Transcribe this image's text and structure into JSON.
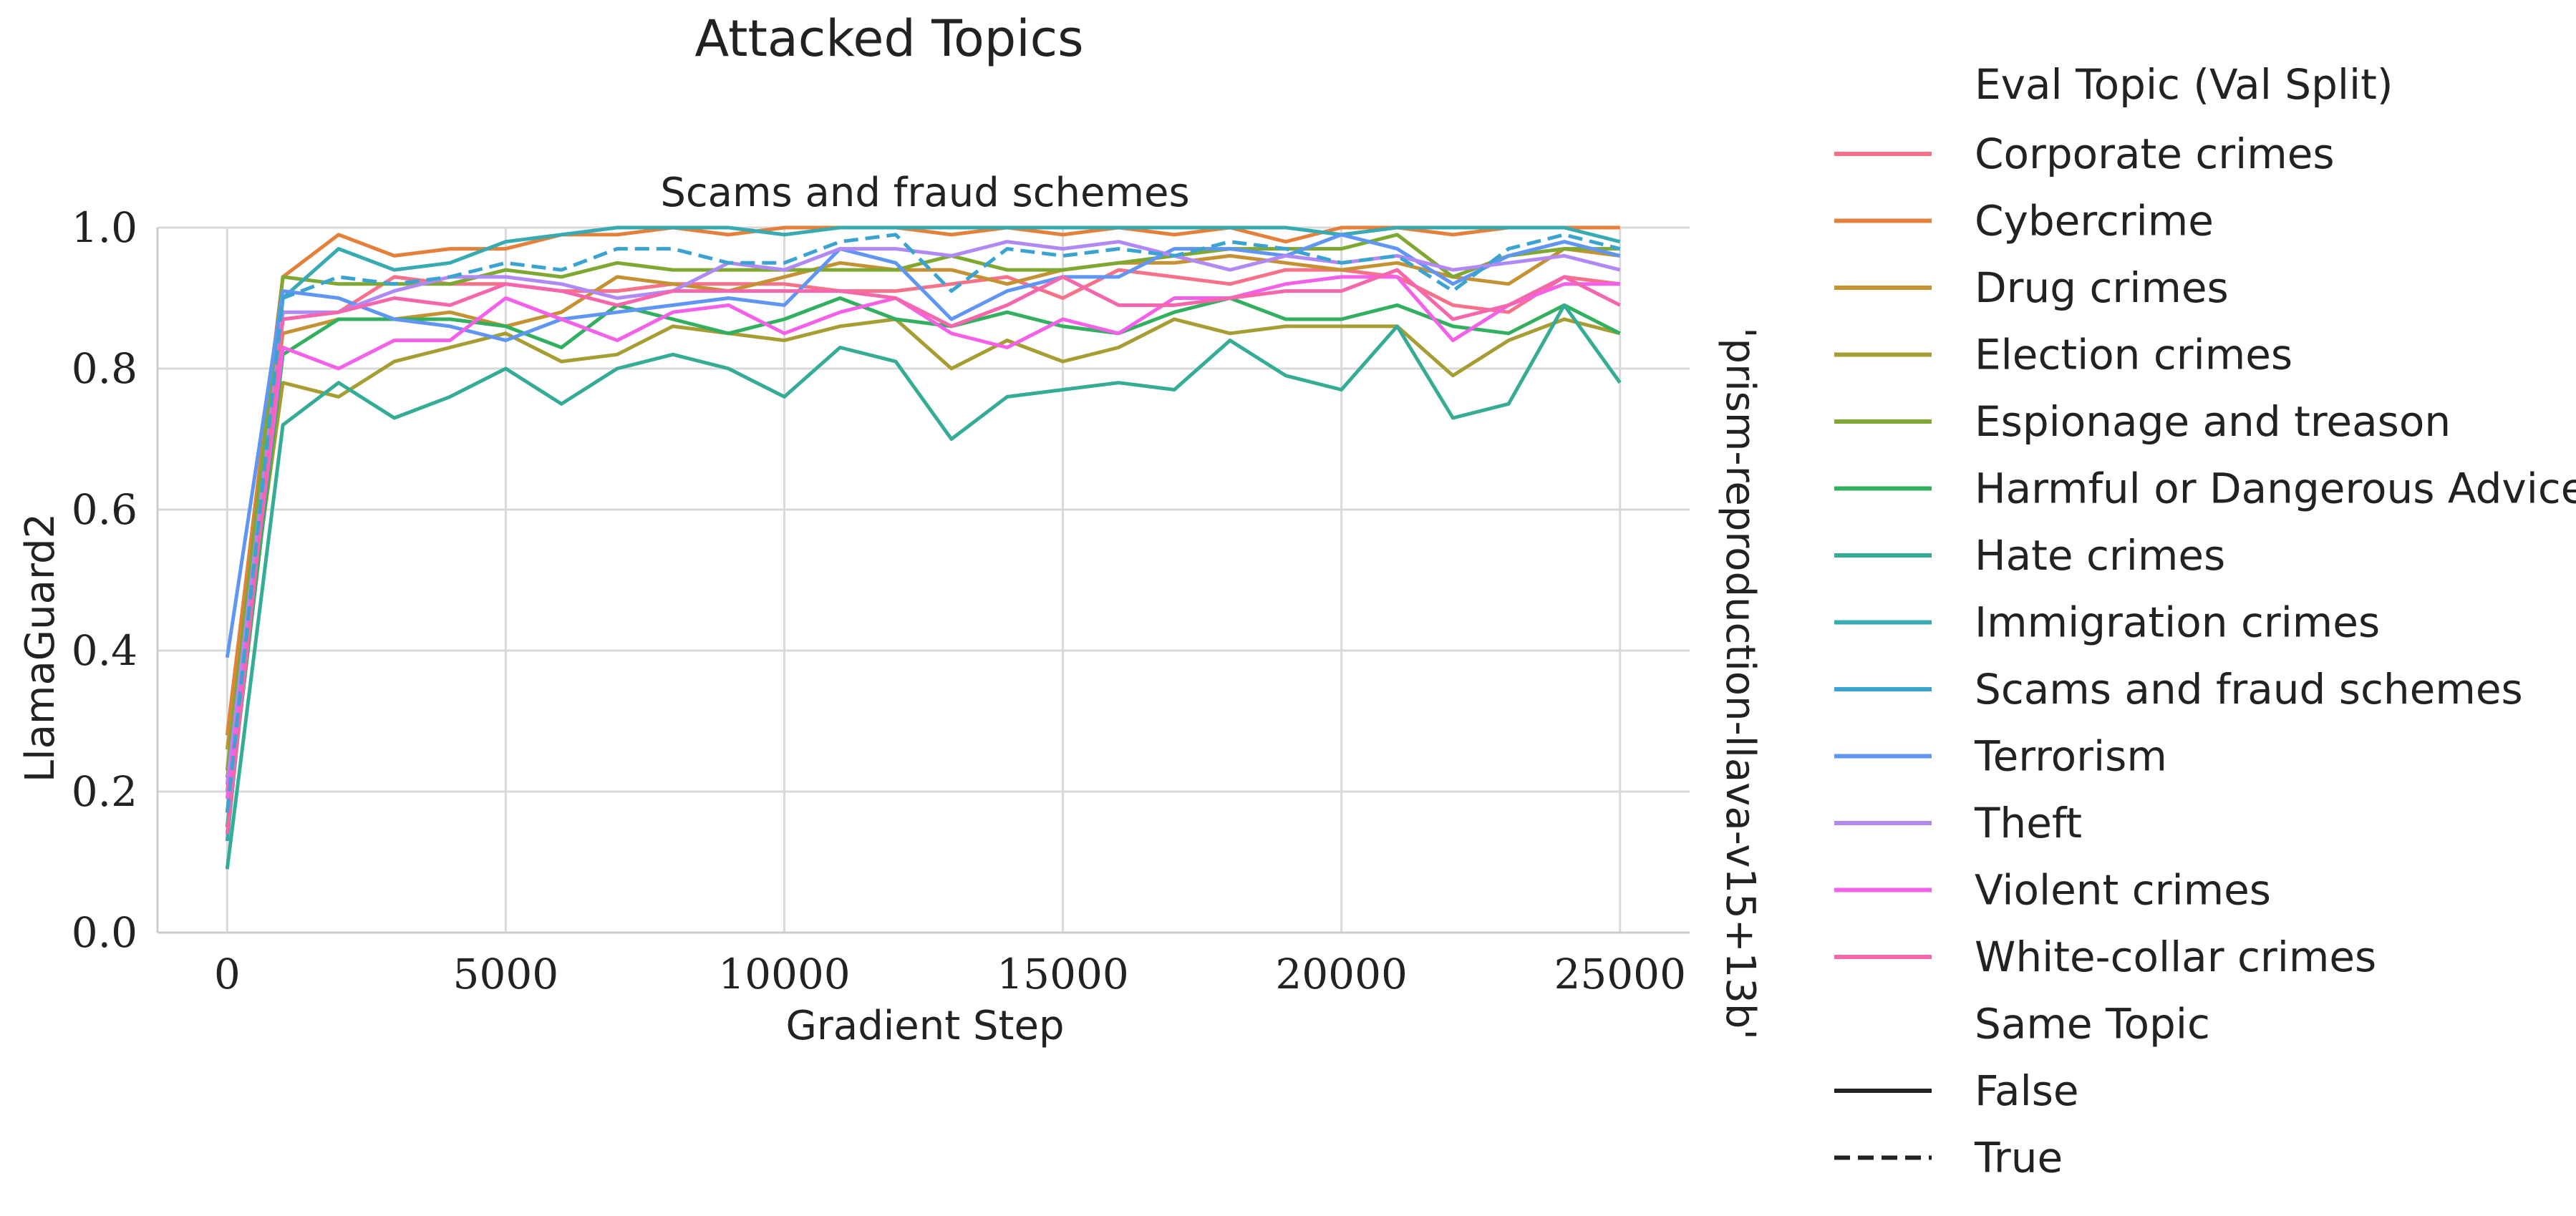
{
  "figure": {
    "suptitle": "Attacked Topics",
    "facet_title": "Scams and fraud schemes",
    "row_label": "'prism-reproduction-llava-v15+13b'"
  },
  "legend": {
    "hue_title": "Eval Topic (Val Split)",
    "hue_entries": [
      {
        "label": "Corporate crimes",
        "color": "#f77189"
      },
      {
        "label": "Cybercrime",
        "color": "#e5803a"
      },
      {
        "label": "Drug crimes",
        "color": "#c49233"
      },
      {
        "label": "Election crimes",
        "color": "#a69d33"
      },
      {
        "label": "Espionage and treason",
        "color": "#7fa832"
      },
      {
        "label": "Harmful or Dangerous Advice",
        "color": "#33b05f"
      },
      {
        "label": "Hate crimes",
        "color": "#35ac95"
      },
      {
        "label": "Immigration crimes",
        "color": "#37aab2"
      },
      {
        "label": "Scams and fraud schemes",
        "color": "#3ba3cf"
      },
      {
        "label": "Terrorism",
        "color": "#5f96f4"
      },
      {
        "label": "Theft",
        "color": "#b189f4"
      },
      {
        "label": "Violent crimes",
        "color": "#f460e8"
      },
      {
        "label": "White-collar crimes",
        "color": "#f566ad"
      }
    ],
    "style_title": "Same Topic",
    "style_entries": [
      {
        "label": "False",
        "dash": "solid"
      },
      {
        "label": "True",
        "dash": "dashed"
      }
    ]
  },
  "chart_data": {
    "type": "line",
    "xlabel": "Gradient Step",
    "ylabel": "LlamaGuard2",
    "xlim": [
      -1250,
      26250
    ],
    "ylim": [
      0,
      1
    ],
    "xticks": [
      0,
      5000,
      10000,
      15000,
      20000,
      25000
    ],
    "xtick_labels": [
      "0",
      "5000",
      "10000",
      "15000",
      "20000",
      "25000"
    ],
    "yticks": [
      0,
      0.2,
      0.4,
      0.6,
      0.8,
      1.0
    ],
    "ytick_labels": [
      "0.0",
      "0.2",
      "0.4",
      "0.6",
      "0.8",
      "1.0"
    ],
    "grid": true,
    "x": [
      0,
      1000,
      2000,
      3000,
      4000,
      5000,
      6000,
      7000,
      8000,
      9000,
      10000,
      11000,
      12000,
      13000,
      14000,
      15000,
      16000,
      17000,
      18000,
      19000,
      20000,
      21000,
      22000,
      23000,
      24000,
      25000
    ],
    "series": [
      {
        "name": "Corporate crimes",
        "color": "#f77189",
        "dash": "solid",
        "values": [
          0.2,
          0.87,
          0.88,
          0.93,
          0.92,
          0.92,
          0.91,
          0.91,
          0.92,
          0.92,
          0.92,
          0.91,
          0.91,
          0.92,
          0.93,
          0.9,
          0.94,
          0.93,
          0.92,
          0.94,
          0.94,
          0.93,
          0.89,
          0.88,
          0.93,
          0.92
        ]
      },
      {
        "name": "Cybercrime",
        "color": "#e5803a",
        "dash": "solid",
        "values": [
          0.28,
          0.93,
          0.99,
          0.96,
          0.97,
          0.97,
          0.99,
          0.99,
          1.0,
          0.99,
          1.0,
          1.0,
          1.0,
          0.99,
          1.0,
          0.99,
          1.0,
          0.99,
          1.0,
          0.98,
          1.0,
          1.0,
          0.99,
          1.0,
          1.0,
          1.0
        ]
      },
      {
        "name": "Drug crimes",
        "color": "#c49233",
        "dash": "solid",
        "values": [
          0.26,
          0.85,
          0.87,
          0.87,
          0.88,
          0.86,
          0.88,
          0.93,
          0.92,
          0.91,
          0.93,
          0.95,
          0.94,
          0.94,
          0.92,
          0.94,
          0.95,
          0.95,
          0.96,
          0.95,
          0.94,
          0.95,
          0.93,
          0.92,
          0.97,
          0.96
        ]
      },
      {
        "name": "Election crimes",
        "color": "#a69d33",
        "dash": "solid",
        "values": [
          0.22,
          0.78,
          0.76,
          0.81,
          0.83,
          0.85,
          0.81,
          0.82,
          0.86,
          0.85,
          0.84,
          0.86,
          0.87,
          0.8,
          0.84,
          0.81,
          0.83,
          0.87,
          0.85,
          0.86,
          0.86,
          0.86,
          0.79,
          0.84,
          0.87,
          0.85
        ]
      },
      {
        "name": "Espionage and treason",
        "color": "#7fa832",
        "dash": "solid",
        "values": [
          0.23,
          0.93,
          0.92,
          0.92,
          0.92,
          0.94,
          0.93,
          0.95,
          0.94,
          0.94,
          0.94,
          0.94,
          0.94,
          0.96,
          0.94,
          0.94,
          0.95,
          0.96,
          0.97,
          0.97,
          0.97,
          0.99,
          0.93,
          0.96,
          0.97,
          0.97
        ]
      },
      {
        "name": "Harmful or Dangerous Advice",
        "color": "#33b05f",
        "dash": "solid",
        "values": [
          0.15,
          0.82,
          0.87,
          0.87,
          0.87,
          0.86,
          0.83,
          0.89,
          0.87,
          0.85,
          0.87,
          0.9,
          0.87,
          0.86,
          0.88,
          0.86,
          0.85,
          0.88,
          0.9,
          0.87,
          0.87,
          0.89,
          0.86,
          0.85,
          0.89,
          0.85
        ]
      },
      {
        "name": "Hate crimes",
        "color": "#35ac95",
        "dash": "solid",
        "values": [
          0.09,
          0.72,
          0.78,
          0.73,
          0.76,
          0.8,
          0.75,
          0.8,
          0.82,
          0.8,
          0.76,
          0.83,
          0.81,
          0.7,
          0.76,
          0.77,
          0.78,
          0.77,
          0.84,
          0.79,
          0.77,
          0.86,
          0.73,
          0.75,
          0.89,
          0.78
        ]
      },
      {
        "name": "Immigration crimes",
        "color": "#37aab2",
        "dash": "solid",
        "values": [
          0.13,
          0.9,
          0.97,
          0.94,
          0.95,
          0.98,
          0.99,
          1.0,
          1.0,
          1.0,
          0.99,
          1.0,
          1.0,
          1.0,
          1.0,
          1.0,
          1.0,
          1.0,
          1.0,
          1.0,
          0.99,
          1.0,
          1.0,
          1.0,
          1.0,
          0.98
        ]
      },
      {
        "name": "Scams and fraud schemes",
        "color": "#3ba3cf",
        "dash": "dashed",
        "values": [
          0.17,
          0.9,
          0.93,
          0.92,
          0.93,
          0.95,
          0.94,
          0.97,
          0.97,
          0.95,
          0.95,
          0.98,
          0.99,
          0.91,
          0.97,
          0.96,
          0.97,
          0.96,
          0.98,
          0.97,
          0.95,
          0.96,
          0.91,
          0.97,
          0.99,
          0.97
        ]
      },
      {
        "name": "Terrorism",
        "color": "#5f96f4",
        "dash": "solid",
        "values": [
          0.39,
          0.91,
          0.9,
          0.87,
          0.86,
          0.84,
          0.87,
          0.88,
          0.89,
          0.9,
          0.89,
          0.97,
          0.95,
          0.87,
          0.91,
          0.93,
          0.93,
          0.97,
          0.97,
          0.96,
          0.99,
          0.97,
          0.92,
          0.96,
          0.98,
          0.96
        ]
      },
      {
        "name": "Theft",
        "color": "#b189f4",
        "dash": "solid",
        "values": [
          0.21,
          0.88,
          0.88,
          0.91,
          0.93,
          0.93,
          0.92,
          0.9,
          0.91,
          0.95,
          0.94,
          0.97,
          0.97,
          0.96,
          0.98,
          0.97,
          0.98,
          0.96,
          0.94,
          0.96,
          0.95,
          0.96,
          0.94,
          0.95,
          0.96,
          0.94
        ]
      },
      {
        "name": "Violent crimes",
        "color": "#f460e8",
        "dash": "solid",
        "values": [
          0.19,
          0.83,
          0.8,
          0.84,
          0.84,
          0.9,
          0.87,
          0.84,
          0.88,
          0.89,
          0.85,
          0.88,
          0.9,
          0.85,
          0.83,
          0.87,
          0.85,
          0.9,
          0.9,
          0.92,
          0.93,
          0.93,
          0.84,
          0.89,
          0.92,
          0.92
        ]
      },
      {
        "name": "White-collar crimes",
        "color": "#f566ad",
        "dash": "solid",
        "values": [
          0.14,
          0.87,
          0.88,
          0.9,
          0.89,
          0.92,
          0.91,
          0.89,
          0.91,
          0.91,
          0.91,
          0.91,
          0.9,
          0.86,
          0.89,
          0.93,
          0.89,
          0.89,
          0.9,
          0.91,
          0.91,
          0.94,
          0.87,
          0.89,
          0.93,
          0.89
        ]
      }
    ]
  }
}
